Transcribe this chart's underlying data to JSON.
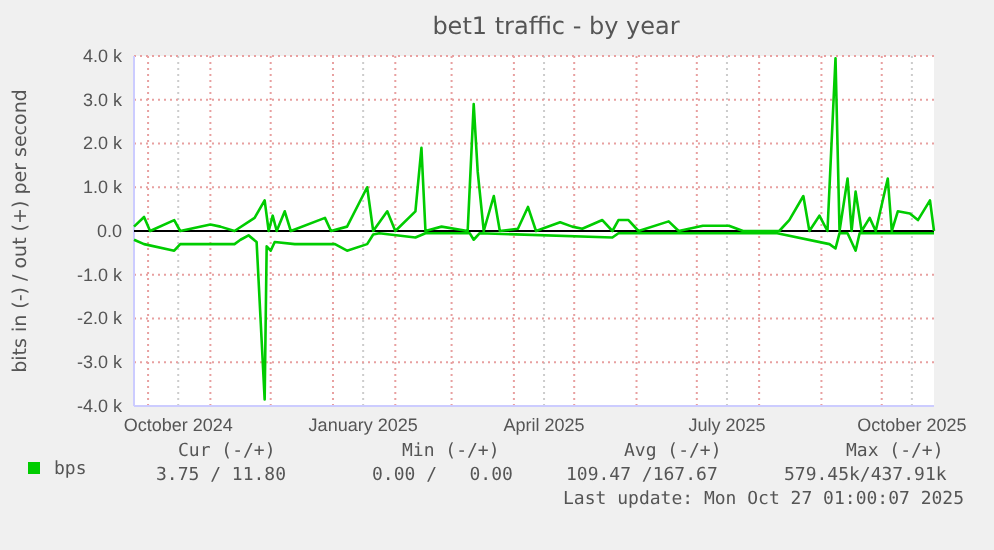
{
  "chart_data": {
    "type": "line",
    "title": "bet1 traffic - by year",
    "ylabel": "bits in (-) / out (+) per second",
    "xlim": [
      "2024-09-24",
      "2025-10-27"
    ],
    "xticks": [
      {
        "value": "2024-10-01",
        "label": null
      },
      {
        "value": "2024-10-16",
        "label": "October 2024"
      },
      {
        "value": "2024-11-01",
        "label": null
      },
      {
        "value": "2024-12-01",
        "label": null
      },
      {
        "value": "2025-01-01",
        "label": null
      },
      {
        "value": "2025-01-16",
        "label": "January 2025"
      },
      {
        "value": "2025-02-01",
        "label": null
      },
      {
        "value": "2025-03-01",
        "label": null
      },
      {
        "value": "2025-04-01",
        "label": null
      },
      {
        "value": "2025-04-16",
        "label": "April 2025"
      },
      {
        "value": "2025-05-01",
        "label": null
      },
      {
        "value": "2025-06-01",
        "label": null
      },
      {
        "value": "2025-07-01",
        "label": null
      },
      {
        "value": "2025-07-16",
        "label": "July 2025"
      },
      {
        "value": "2025-08-01",
        "label": null
      },
      {
        "value": "2025-09-01",
        "label": null
      },
      {
        "value": "2025-10-01",
        "label": null
      },
      {
        "value": "2025-10-16",
        "label": "October 2025"
      }
    ],
    "ylim": [
      -4000,
      4000
    ],
    "yticks": [
      {
        "value": -4000,
        "label": "-4.0 k"
      },
      {
        "value": -3000,
        "label": "-3.0 k"
      },
      {
        "value": -2000,
        "label": "-2.0 k"
      },
      {
        "value": -1000,
        "label": "-1.0 k"
      },
      {
        "value": 0,
        "label": "0.0"
      },
      {
        "value": 1000,
        "label": "1.0 k"
      },
      {
        "value": 2000,
        "label": "2.0 k"
      },
      {
        "value": 3000,
        "label": "3.0 k"
      },
      {
        "value": 4000,
        "label": "4.0 k"
      }
    ],
    "grid": true,
    "legend": "bottom",
    "marker": "none",
    "line_style": "solid",
    "ref_lines": [
      {
        "axis": "y",
        "value": 0,
        "color": "#000000"
      }
    ],
    "series": [
      {
        "name": "bps",
        "color": "#00cc00",
        "x": [
          "2024-09-24",
          "2024-09-29",
          "2024-10-02",
          "2024-10-14",
          "2024-10-17",
          "2024-11-01",
          "2024-11-06",
          "2024-11-13",
          "2024-11-23",
          "2024-11-28",
          "2024-11-30",
          "2024-12-02",
          "2024-12-04",
          "2024-12-08",
          "2024-12-11",
          "2024-12-28",
          "2024-12-31",
          "2025-01-08",
          "2025-01-18",
          "2025-01-21",
          "2025-01-28",
          "2025-02-01",
          "2025-02-11",
          "2025-02-14",
          "2025-02-16",
          "2025-02-24",
          "2025-03-09",
          "2025-03-12",
          "2025-03-14",
          "2025-03-17",
          "2025-03-22",
          "2025-03-25",
          "2025-04-03",
          "2025-04-08",
          "2025-04-12",
          "2025-04-24",
          "2025-04-30",
          "2025-05-05",
          "2025-05-15",
          "2025-05-20",
          "2025-05-23",
          "2025-05-28",
          "2025-06-02",
          "2025-06-17",
          "2025-06-22",
          "2025-07-04",
          "2025-07-17",
          "2025-07-24",
          "2025-08-11",
          "2025-08-16",
          "2025-08-23",
          "2025-08-26",
          "2025-08-31",
          "2025-09-04",
          "2025-09-08",
          "2025-09-10",
          "2025-09-14",
          "2025-09-16",
          "2025-09-18",
          "2025-09-21",
          "2025-09-25",
          "2025-09-28",
          "2025-10-04",
          "2025-10-06",
          "2025-10-09",
          "2025-10-15",
          "2025-10-19",
          "2025-10-25",
          "2025-10-27"
        ],
        "values": [
          100,
          320,
          0,
          250,
          0,
          150,
          100,
          0,
          300,
          700,
          0,
          350,
          0,
          450,
          0,
          300,
          0,
          100,
          1000,
          0,
          450,
          0,
          450,
          1900,
          0,
          100,
          0,
          2900,
          1350,
          0,
          800,
          0,
          50,
          550,
          0,
          200,
          100,
          50,
          250,
          0,
          250,
          250,
          0,
          220,
          0,
          120,
          120,
          0,
          0,
          250,
          800,
          0,
          350,
          0,
          3950,
          0,
          1200,
          0,
          900,
          0,
          300,
          0,
          1200,
          0,
          450,
          400,
          250,
          700,
          0
        ]
      },
      {
        "color": "#00cc00",
        "x": [
          "2024-09-24",
          "2024-09-29",
          "2024-10-14",
          "2024-10-17",
          "2024-11-13",
          "2024-11-16",
          "2024-11-20",
          "2024-11-24",
          "2024-11-28",
          "2024-11-29",
          "2024-12-01",
          "2024-12-03",
          "2024-12-13",
          "2025-01-02",
          "2025-01-08",
          "2025-01-18",
          "2025-01-21",
          "2025-01-24",
          "2025-02-11",
          "2025-02-16",
          "2025-03-10",
          "2025-03-12",
          "2025-03-15",
          "2025-05-20",
          "2025-05-23",
          "2025-08-10",
          "2025-09-05",
          "2025-09-08",
          "2025-09-10",
          "2025-09-14",
          "2025-09-18",
          "2025-09-20",
          "2025-10-27"
        ],
        "values": [
          -200,
          -300,
          -450,
          -300,
          -300,
          -200,
          -100,
          -250,
          -3850,
          -350,
          -450,
          -250,
          -300,
          -300,
          -450,
          -300,
          -80,
          -50,
          -150,
          -50,
          -50,
          -200,
          -50,
          -150,
          -50,
          -50,
          -300,
          -400,
          -50,
          -50,
          -450,
          -50,
          -50
        ]
      }
    ],
    "annotations": [
      "Cur (-/+)",
      "Min (-/+)",
      "Avg (-/+)",
      "Max (-/+)",
      "3.75 / 11.80",
      "0.00 /   0.00",
      "109.47 /167.67",
      "579.45k/437.91k",
      "Last update: Mon Oct 27 01:00:07 2025"
    ]
  }
}
